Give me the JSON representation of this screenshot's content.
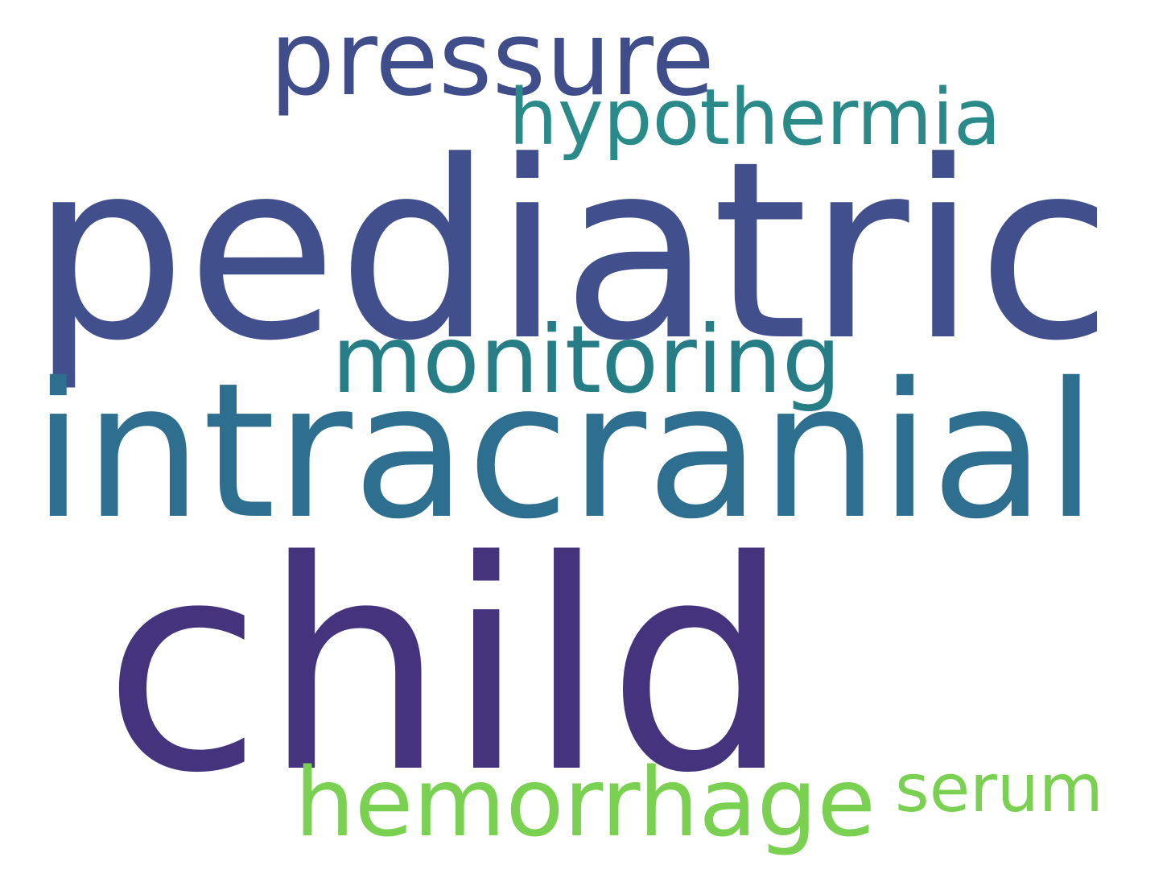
{
  "words": [
    {
      "key": "pressure",
      "text": "pressure",
      "color": "#3f4d8a"
    },
    {
      "key": "hypothermia",
      "text": "hypothermia",
      "color": "#2a8a8a"
    },
    {
      "key": "pediatric",
      "text": "pediatric",
      "color": "#414f8c"
    },
    {
      "key": "monitoring",
      "text": "monitoring",
      "color": "#267d86"
    },
    {
      "key": "intracranial",
      "text": "intracranial",
      "color": "#2e6e8e"
    },
    {
      "key": "child",
      "text": "child",
      "color": "#46337e"
    },
    {
      "key": "hemorrhage",
      "text": "hemorrhage",
      "color": "#7ad151"
    },
    {
      "key": "serum",
      "text": "serum",
      "color": "#7ad151"
    }
  ]
}
